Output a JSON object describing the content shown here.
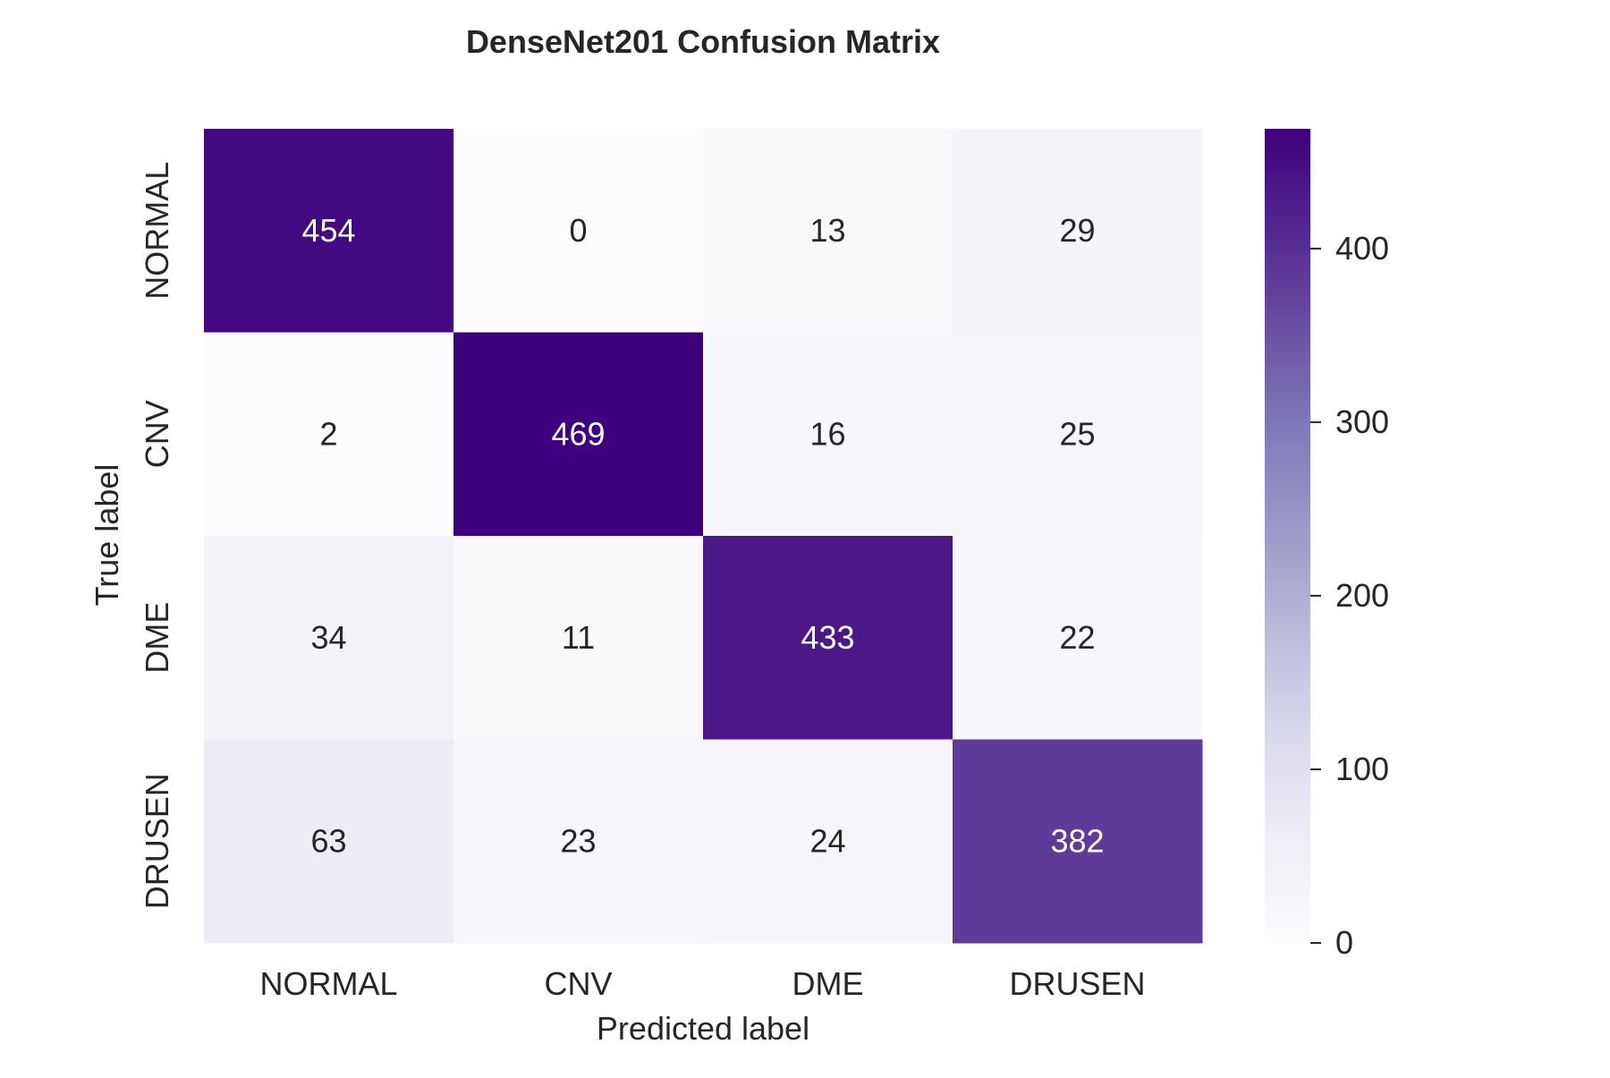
{
  "chart_data": {
    "type": "heatmap",
    "title": "DenseNet201 Confusion Matrix",
    "xlabel": "Predicted label",
    "ylabel": "True label",
    "x_categories": [
      "NORMAL",
      "CNV",
      "DME",
      "DRUSEN"
    ],
    "y_categories": [
      "NORMAL",
      "CNV",
      "DME",
      "DRUSEN"
    ],
    "values": [
      [
        454,
        0,
        13,
        29
      ],
      [
        2,
        469,
        16,
        25
      ],
      [
        34,
        11,
        433,
        22
      ],
      [
        63,
        23,
        24,
        382
      ]
    ],
    "colormap": "Purples",
    "colorbar": {
      "range": [
        0,
        469
      ],
      "ticks": [
        0,
        100,
        200,
        300,
        400
      ]
    },
    "colors": {
      "low": "#fcfbfd",
      "high": "#3f007d",
      "text_dark": "#262626",
      "text_light": "#ffffff"
    }
  }
}
